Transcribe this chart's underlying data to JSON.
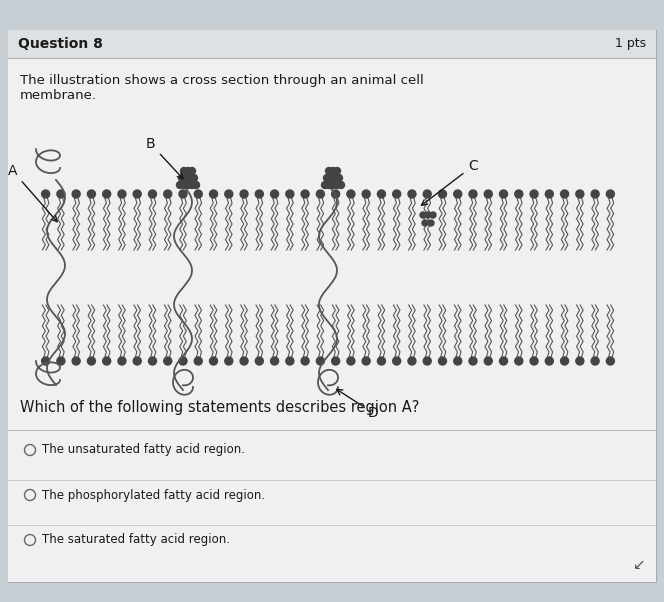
{
  "bg_color": "#c8cfd4",
  "card_bg": "#e8ecef",
  "card_inner_bg": "#eef0f2",
  "title_bar_bg": "#dde1e4",
  "title": "Question 8",
  "pts": "1 pts",
  "desc1": "The illustration shows a cross section through an animal cell",
  "desc2": "membrane.",
  "question": "Which of the following statements describes region A?",
  "options": [
    "The unsaturated fatty acid region.",
    "The phosphorylated fatty acid region.",
    "The saturated fatty acid region."
  ],
  "mem_color": "#555555",
  "head_color": "#444444",
  "text_color": "#1a1a1a",
  "divider_color": "#bbbbbb",
  "title_fontsize": 10,
  "pts_fontsize": 9,
  "desc_fontsize": 9.5,
  "question_fontsize": 10.5,
  "option_fontsize": 8.5,
  "label_fontsize": 10
}
